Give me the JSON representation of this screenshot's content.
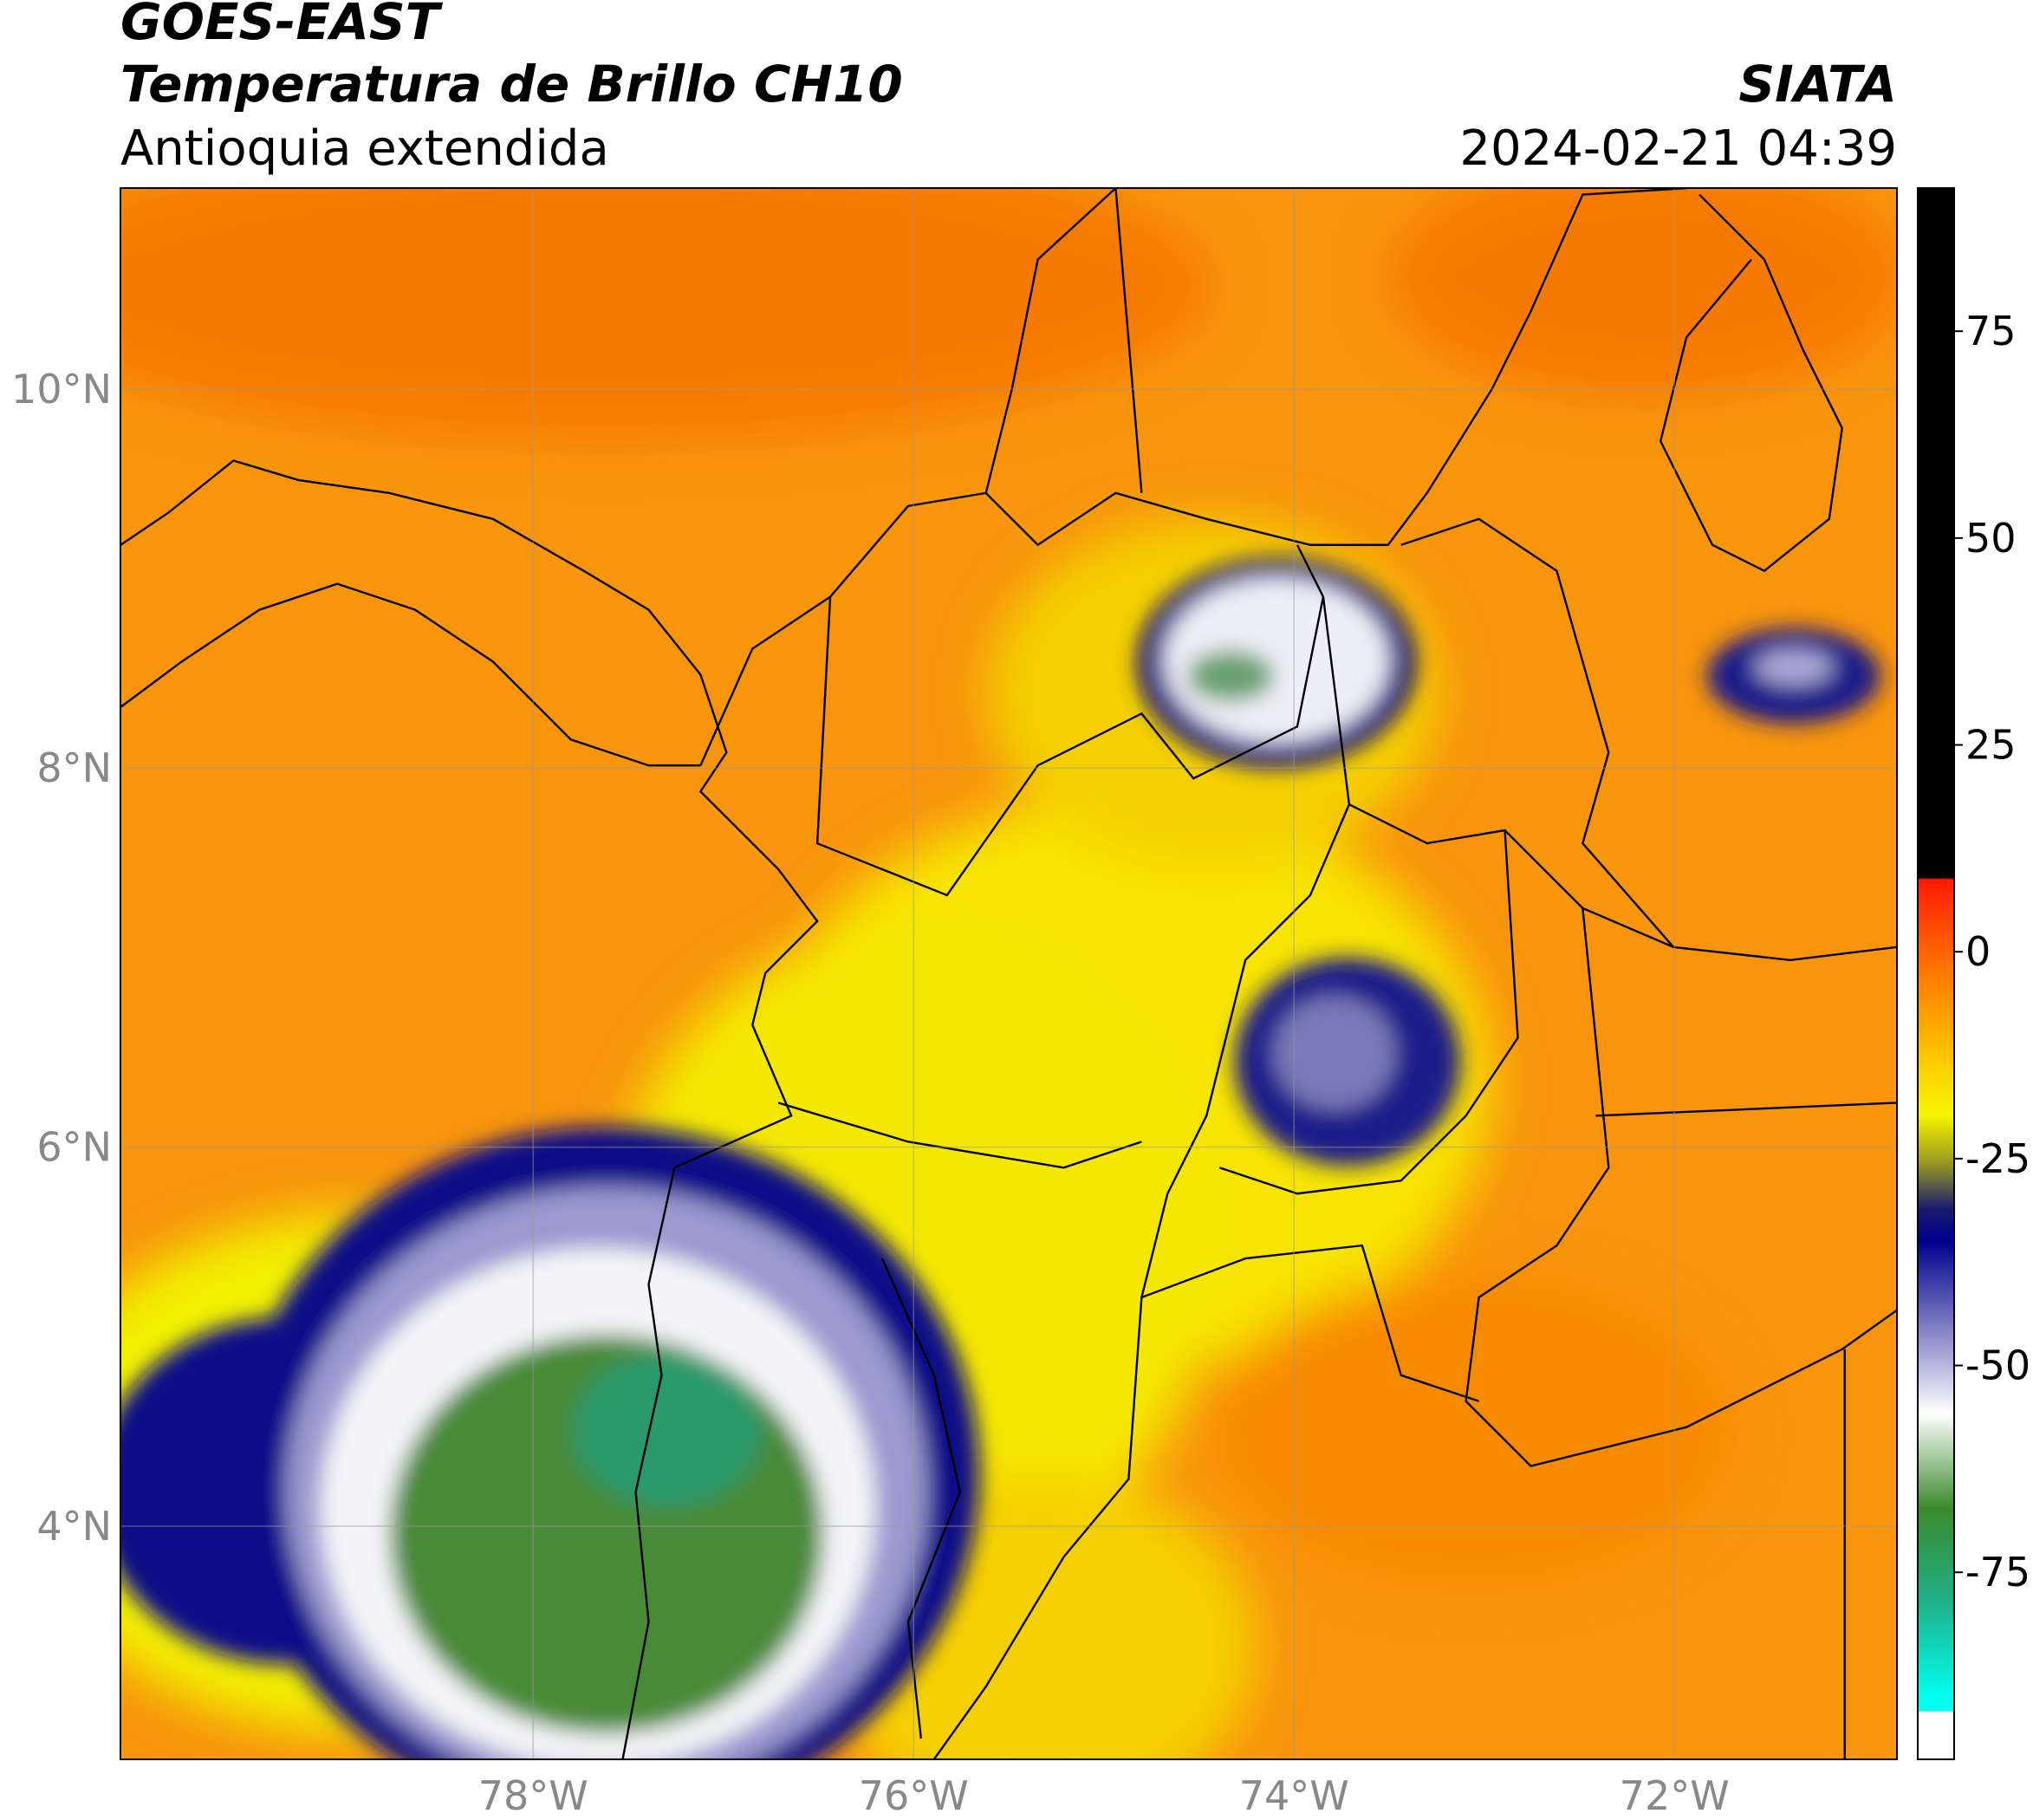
{
  "header": {
    "title": "GOES-EAST",
    "subtitle": "Temperatura de Brillo CH10",
    "region": "Antioquia extendida",
    "source": "SIATA",
    "datetime": "2024-02-21 04:39"
  },
  "map": {
    "xlim": [
      -80.17,
      -70.83
    ],
    "ylim": [
      2.77,
      11.06
    ],
    "xticks": [
      {
        "value": -78,
        "label": "78°W"
      },
      {
        "value": -76,
        "label": "76°W"
      },
      {
        "value": -74,
        "label": "74°W"
      },
      {
        "value": -72,
        "label": "72°W"
      }
    ],
    "yticks": [
      {
        "value": 4,
        "label": "4°N"
      },
      {
        "value": 6,
        "label": "6°N"
      },
      {
        "value": 8,
        "label": "8°N"
      },
      {
        "value": 10,
        "label": "10°N"
      }
    ],
    "grid": true
  },
  "colorbar": {
    "clim": [
      -97.6,
      92.3
    ],
    "ticks": [
      75,
      50,
      25,
      0,
      -25,
      -50,
      -75
    ]
  }
}
